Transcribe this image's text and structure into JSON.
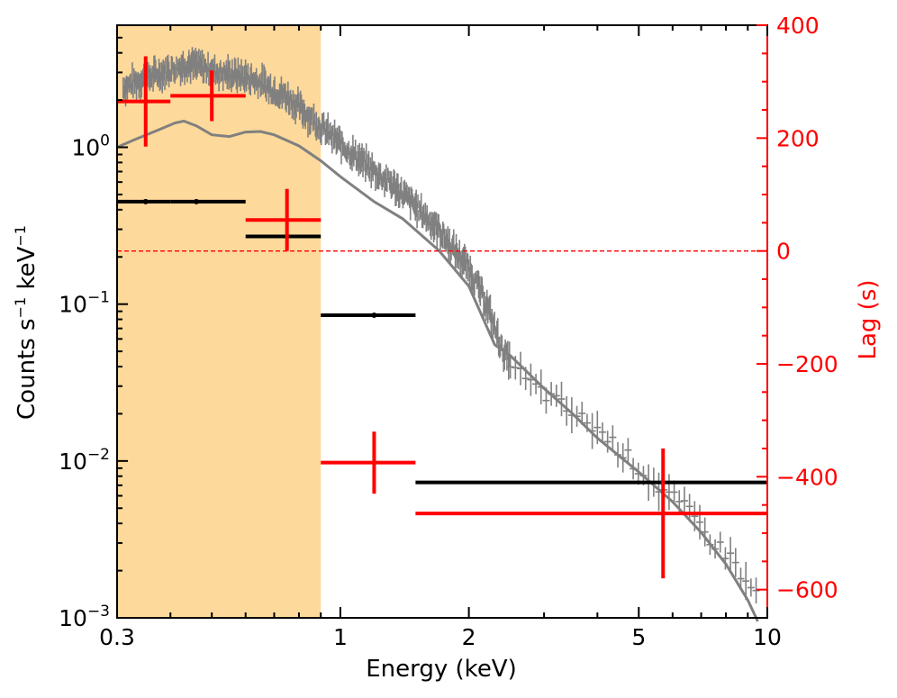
{
  "chart_data": {
    "type": "scatter",
    "title": "",
    "xlabel": "Energy (keV)",
    "ylabel_left": "Counts s⁻¹ keV⁻¹",
    "ylabel_left_parts": [
      "Counts s",
      "−1",
      " keV",
      "−1"
    ],
    "ylabel_right": "Lag (s)",
    "xscale": "log",
    "xlim": [
      0.3,
      10
    ],
    "ylim_left": [
      0.001,
      6
    ],
    "ylim_right": [
      -650,
      400
    ],
    "x_ticks": [
      {
        "value": 0.3,
        "label": "0.3"
      },
      {
        "value": 1,
        "label": "1"
      },
      {
        "value": 2,
        "label": "2"
      },
      {
        "value": 5,
        "label": "5"
      },
      {
        "value": 10,
        "label": "10"
      }
    ],
    "y_left_ticks": [
      {
        "value": 1,
        "base": "10",
        "exp": "0"
      },
      {
        "value": 0.1,
        "base": "10",
        "exp": "−1"
      },
      {
        "value": 0.01,
        "base": "10",
        "exp": "−2"
      },
      {
        "value": 0.001,
        "base": "10",
        "exp": "−3"
      }
    ],
    "y_right_ticks": [
      {
        "value": 400,
        "label": "400"
      },
      {
        "value": 200,
        "label": "200"
      },
      {
        "value": 0,
        "label": "0"
      },
      {
        "value": -200,
        "label": "−200"
      },
      {
        "value": -400,
        "label": "−400"
      },
      {
        "value": -600,
        "label": "−600"
      }
    ],
    "shaded_band": {
      "x_range": [
        0.3,
        0.9
      ],
      "color": "#FDD99B"
    },
    "zero_line": {
      "lag": 0,
      "color": "#FF0000",
      "style": "dashed"
    },
    "colors": {
      "spectrum": "#808080",
      "lag": "#FF0000",
      "bins": "#000000",
      "right_axis": "#FF0000"
    },
    "series": [
      {
        "name": "spectrum-model",
        "axis": "left",
        "kind": "line",
        "points": [
          [
            0.3,
            1.0
          ],
          [
            0.33,
            1.12
          ],
          [
            0.37,
            1.27
          ],
          [
            0.41,
            1.43
          ],
          [
            0.43,
            1.47
          ],
          [
            0.46,
            1.37
          ],
          [
            0.5,
            1.2
          ],
          [
            0.55,
            1.17
          ],
          [
            0.6,
            1.25
          ],
          [
            0.65,
            1.26
          ],
          [
            0.7,
            1.2
          ],
          [
            0.8,
            1.02
          ],
          [
            0.9,
            0.82
          ],
          [
            1.0,
            0.65
          ],
          [
            1.2,
            0.45
          ],
          [
            1.4,
            0.35
          ],
          [
            1.7,
            0.22
          ],
          [
            2.0,
            0.13
          ],
          [
            2.3,
            0.055
          ],
          [
            2.5,
            0.047
          ],
          [
            3.0,
            0.029
          ],
          [
            3.5,
            0.02
          ],
          [
            4.0,
            0.014
          ],
          [
            5.0,
            0.0085
          ],
          [
            6.0,
            0.0055
          ],
          [
            7.0,
            0.0035
          ],
          [
            8.0,
            0.0022
          ],
          [
            9.0,
            0.0013
          ],
          [
            9.5,
            0.00095
          ]
        ]
      },
      {
        "name": "spectrum-data",
        "axis": "left",
        "kind": "errorbar-envelope",
        "note": "dense grey data points with error bars following the model curve, higher than the model below ~1.5 keV",
        "points": [
          [
            0.3,
            2.3
          ],
          [
            0.33,
            2.6
          ],
          [
            0.37,
            2.9
          ],
          [
            0.41,
            3.2
          ],
          [
            0.44,
            3.4
          ],
          [
            0.48,
            3.2
          ],
          [
            0.52,
            3.0
          ],
          [
            0.56,
            2.9
          ],
          [
            0.6,
            2.8
          ],
          [
            0.65,
            2.6
          ],
          [
            0.7,
            2.3
          ],
          [
            0.75,
            2.1
          ],
          [
            0.8,
            1.8
          ],
          [
            0.85,
            1.55
          ],
          [
            0.9,
            1.35
          ],
          [
            1.0,
            1.05
          ],
          [
            1.1,
            0.85
          ],
          [
            1.2,
            0.7
          ],
          [
            1.3,
            0.6
          ],
          [
            1.4,
            0.5
          ],
          [
            1.5,
            0.42
          ],
          [
            1.6,
            0.35
          ],
          [
            1.7,
            0.3
          ],
          [
            1.8,
            0.24
          ],
          [
            2.0,
            0.17
          ],
          [
            2.2,
            0.1
          ],
          [
            2.4,
            0.05
          ],
          [
            2.7,
            0.033
          ],
          [
            3.0,
            0.027
          ],
          [
            3.5,
            0.02
          ],
          [
            4.0,
            0.016
          ],
          [
            4.5,
            0.012
          ],
          [
            5.0,
            0.009
          ],
          [
            5.5,
            0.007
          ],
          [
            6.0,
            0.0058
          ],
          [
            6.5,
            0.0048
          ],
          [
            7.0,
            0.0038
          ],
          [
            7.5,
            0.003
          ],
          [
            8.0,
            0.0026
          ],
          [
            8.5,
            0.0022
          ],
          [
            9.0,
            0.0015
          ],
          [
            9.5,
            0.0015
          ]
        ]
      },
      {
        "name": "binned-counts",
        "axis": "left",
        "kind": "xerr",
        "color": "#000000",
        "points": [
          {
            "x": 0.35,
            "xlo": 0.3,
            "xhi": 0.4,
            "y": 0.45
          },
          {
            "x": 0.46,
            "xlo": 0.4,
            "xhi": 0.6,
            "y": 0.45
          },
          {
            "x": 0.75,
            "xlo": 0.6,
            "xhi": 0.9,
            "y": 0.27
          },
          {
            "x": 1.2,
            "xlo": 0.9,
            "xhi": 1.5,
            "y": 0.085
          },
          {
            "x": 5.7,
            "xlo": 1.5,
            "xhi": 10,
            "y": 0.0073
          }
        ]
      },
      {
        "name": "lags",
        "axis": "right",
        "kind": "xyerr",
        "color": "#FF0000",
        "points": [
          {
            "x": 0.35,
            "xlo": 0.3,
            "xhi": 0.4,
            "y": 265,
            "yerr": 80
          },
          {
            "x": 0.5,
            "xlo": 0.4,
            "xhi": 0.6,
            "y": 275,
            "yerr": 45
          },
          {
            "x": 0.75,
            "xlo": 0.6,
            "xhi": 0.9,
            "y": 55,
            "yerr": 55
          },
          {
            "x": 1.2,
            "xlo": 0.9,
            "xhi": 1.5,
            "y": -375,
            "yerr": 55
          },
          {
            "x": 5.7,
            "xlo": 1.5,
            "xhi": 10,
            "y": -465,
            "yerr": 115
          }
        ]
      }
    ]
  }
}
